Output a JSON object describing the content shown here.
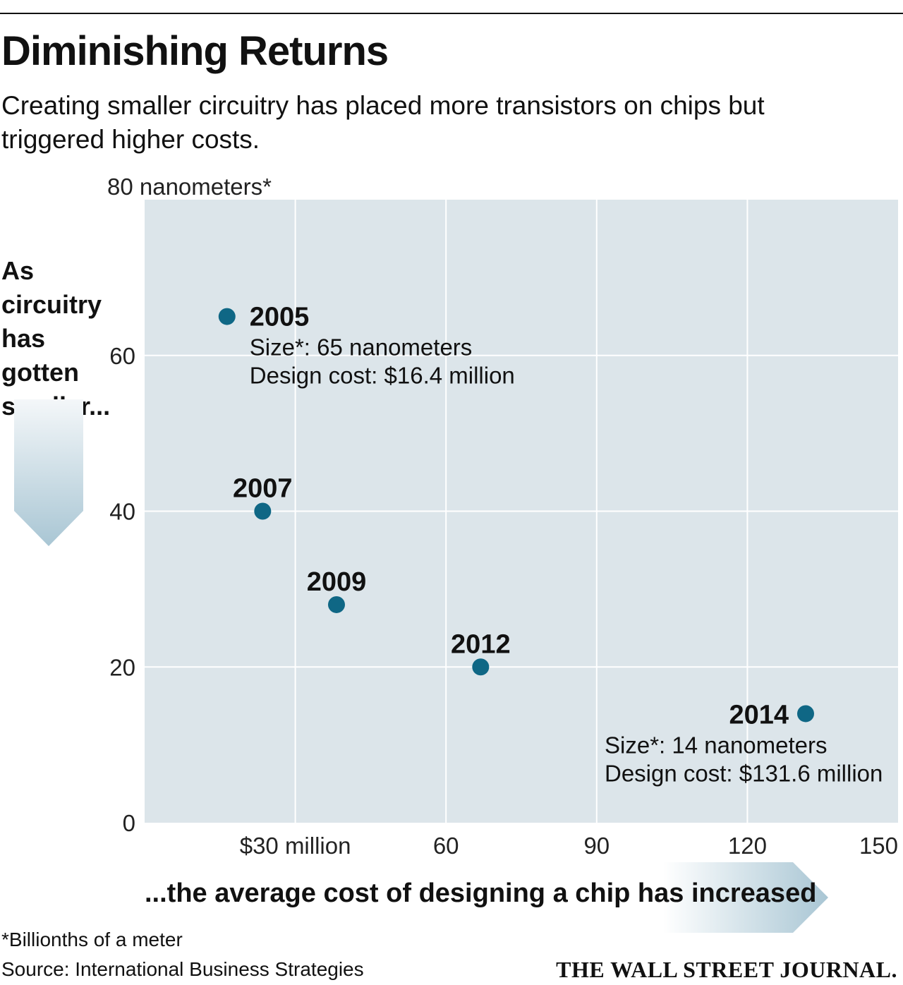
{
  "header": {
    "title": "Diminishing Returns",
    "subtitle_line1": "Creating smaller circuitry has placed more transistors on chips but",
    "subtitle_line2": "triggered higher costs."
  },
  "side_label": {
    "lines": [
      "As",
      "circuitry",
      "has",
      "gotten",
      "smaller..."
    ]
  },
  "x_caption": "...the average cost of designing a chip has increased",
  "footnote": "*Billionths of a meter",
  "source": "Source: International Business Strategies",
  "publisher": "THE WALL STREET JOURNAL.",
  "colors": {
    "plot_bg": "#dce5ea",
    "grid": "#ffffff",
    "dot": "#0f6785",
    "arrow_light": "#eef3f6",
    "arrow_dark": "#a9c6d4"
  },
  "chart_data": {
    "type": "scatter",
    "title": "Diminishing Returns",
    "xlabel": "...the average cost of designing a chip has increased",
    "ylabel": "As circuitry has gotten smaller...",
    "xlim": [
      0,
      150
    ],
    "ylim": [
      0,
      80
    ],
    "x_ticks": [
      {
        "value": 30,
        "label": "$30 million"
      },
      {
        "value": 60,
        "label": "60"
      },
      {
        "value": 90,
        "label": "90"
      },
      {
        "value": 120,
        "label": "120"
      },
      {
        "value": 150,
        "label": "150"
      }
    ],
    "y_ticks": [
      {
        "value": 0,
        "label": "0"
      },
      {
        "value": 20,
        "label": "20"
      },
      {
        "value": 40,
        "label": "40"
      },
      {
        "value": 60,
        "label": "60"
      },
      {
        "value": 80,
        "label": "80 nanometers*"
      }
    ],
    "grid": true,
    "points": [
      {
        "year": "2005",
        "x": 16.4,
        "y": 65,
        "label_pos": "right",
        "details": [
          "Size*: 65 nanometers",
          "Design cost: $16.4 million"
        ]
      },
      {
        "year": "2007",
        "x": 23.5,
        "y": 40,
        "label_pos": "above",
        "details": []
      },
      {
        "year": "2009",
        "x": 38.2,
        "y": 28,
        "label_pos": "above",
        "details": []
      },
      {
        "year": "2012",
        "x": 66.9,
        "y": 20,
        "label_pos": "above",
        "details": []
      },
      {
        "year": "2014",
        "x": 131.6,
        "y": 14,
        "label_pos": "left",
        "details": [
          "Size*: 14 nanometers",
          "Design cost: $131.6 million"
        ]
      }
    ]
  }
}
